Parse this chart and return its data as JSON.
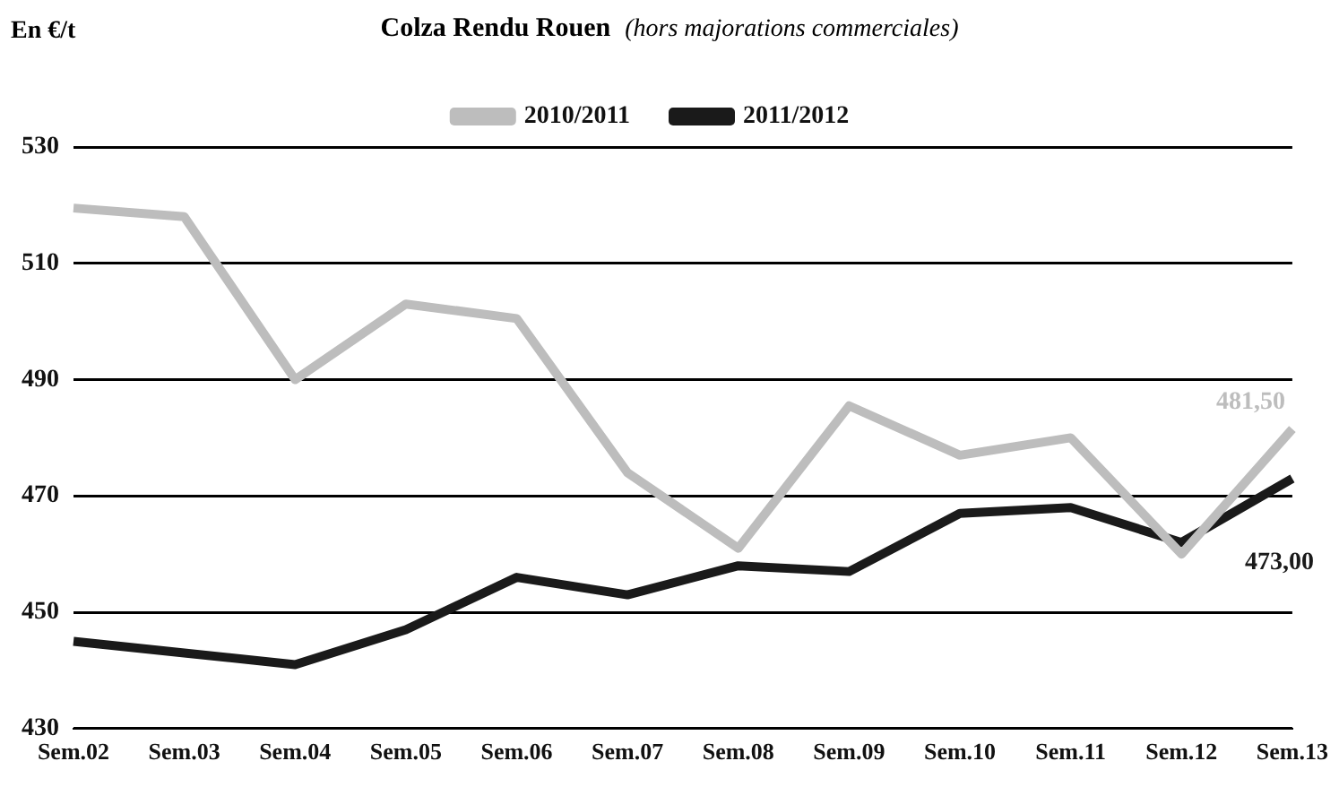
{
  "chart_data": {
    "type": "line",
    "title": "Colza Rendu Rouen",
    "subtitle": "(hors majorations commerciales)",
    "ylabel": "En €/t",
    "categories": [
      "Sem.02",
      "Sem.03",
      "Sem.04",
      "Sem.05",
      "Sem.06",
      "Sem.07",
      "Sem.08",
      "Sem.09",
      "Sem.10",
      "Sem.11",
      "Sem.12",
      "Sem.13"
    ],
    "series": [
      {
        "name": "2010/2011",
        "color": "#bdbdbd",
        "values": [
          519.5,
          518,
          490,
          503,
          500.5,
          474,
          461,
          485.5,
          477,
          480,
          460,
          481.5
        ],
        "value_labels": [
          null,
          null,
          null,
          null,
          null,
          null,
          null,
          null,
          null,
          null,
          null,
          "481,50"
        ]
      },
      {
        "name": "2011/2012",
        "color": "#1a1a1a",
        "values": [
          445,
          443,
          441,
          447,
          456,
          453,
          458,
          457,
          467,
          468,
          462,
          473
        ],
        "value_labels": [
          null,
          null,
          null,
          null,
          null,
          null,
          null,
          null,
          null,
          null,
          null,
          "473,00"
        ]
      }
    ],
    "ylim": [
      430,
      530
    ],
    "yticks": [
      430,
      450,
      470,
      490,
      510,
      530
    ],
    "grid": "y",
    "legend": "top",
    "marker": "none",
    "line_style": "solid"
  }
}
